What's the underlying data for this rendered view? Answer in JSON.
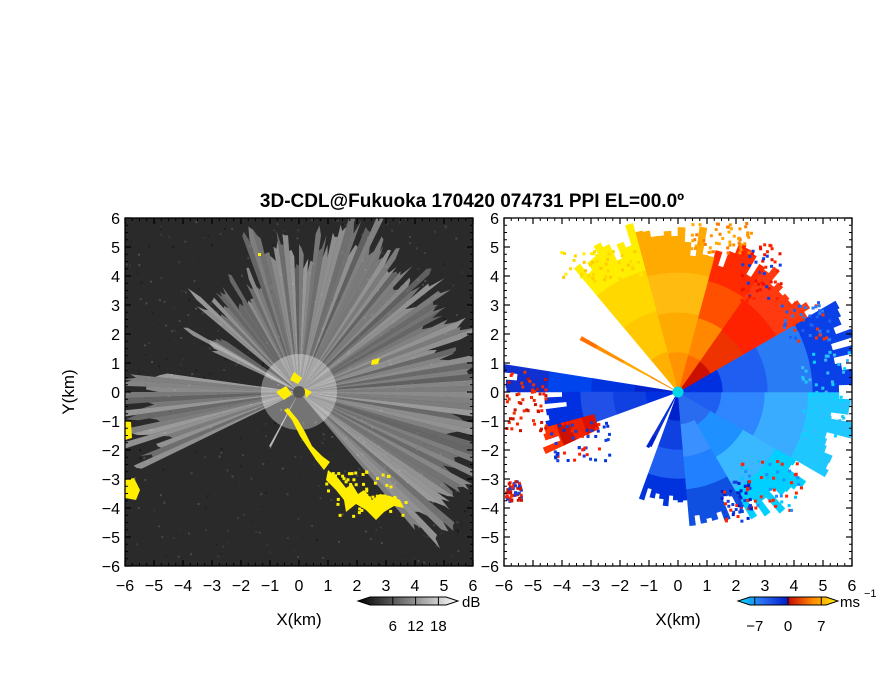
{
  "title": "3D-CDL@Fukuoka 170420 074731 PPI EL=00.0º",
  "chart_data": [
    {
      "type": "heatmap",
      "panel": "signal-to-noise",
      "xlabel": "X(km)",
      "ylabel": "Y(km)",
      "xlim": [
        -6,
        6
      ],
      "ylim": [
        -6,
        6
      ],
      "xticks": [
        "−6",
        "−5",
        "−4",
        "−3",
        "−2",
        "−1",
        "0",
        "1",
        "2",
        "3",
        "4",
        "5",
        "6"
      ],
      "yticks": [
        "6",
        "5",
        "4",
        "3",
        "2",
        "1",
        "0",
        "−1",
        "−2",
        "−3",
        "−4",
        "−5",
        "−6"
      ],
      "background_color": "#2a2a2a",
      "highlight_color": "#ffee00",
      "colorbar": {
        "unit": "dB",
        "ticks": [
          "6",
          "12",
          "18"
        ],
        "range": [
          0,
          20
        ]
      }
    },
    {
      "type": "heatmap",
      "panel": "doppler-velocity",
      "xlabel": "X(km)",
      "xlim": [
        -6,
        6
      ],
      "ylim": [
        -6,
        6
      ],
      "xticks": [
        "−6",
        "−5",
        "−4",
        "−3",
        "−2",
        "−1",
        "0",
        "1",
        "2",
        "3",
        "4",
        "5",
        "6"
      ],
      "yticks": [
        "6",
        "5",
        "4",
        "3",
        "2",
        "1",
        "0",
        "−1",
        "−2",
        "−3",
        "−4",
        "−5",
        "−6"
      ],
      "radar_site_color": "#00d8e8",
      "colorbar": {
        "unit": "ms",
        "unit_exponent": "−1",
        "ticks": [
          "−7",
          "0",
          "7"
        ],
        "range": [
          -8,
          8
        ]
      }
    }
  ]
}
